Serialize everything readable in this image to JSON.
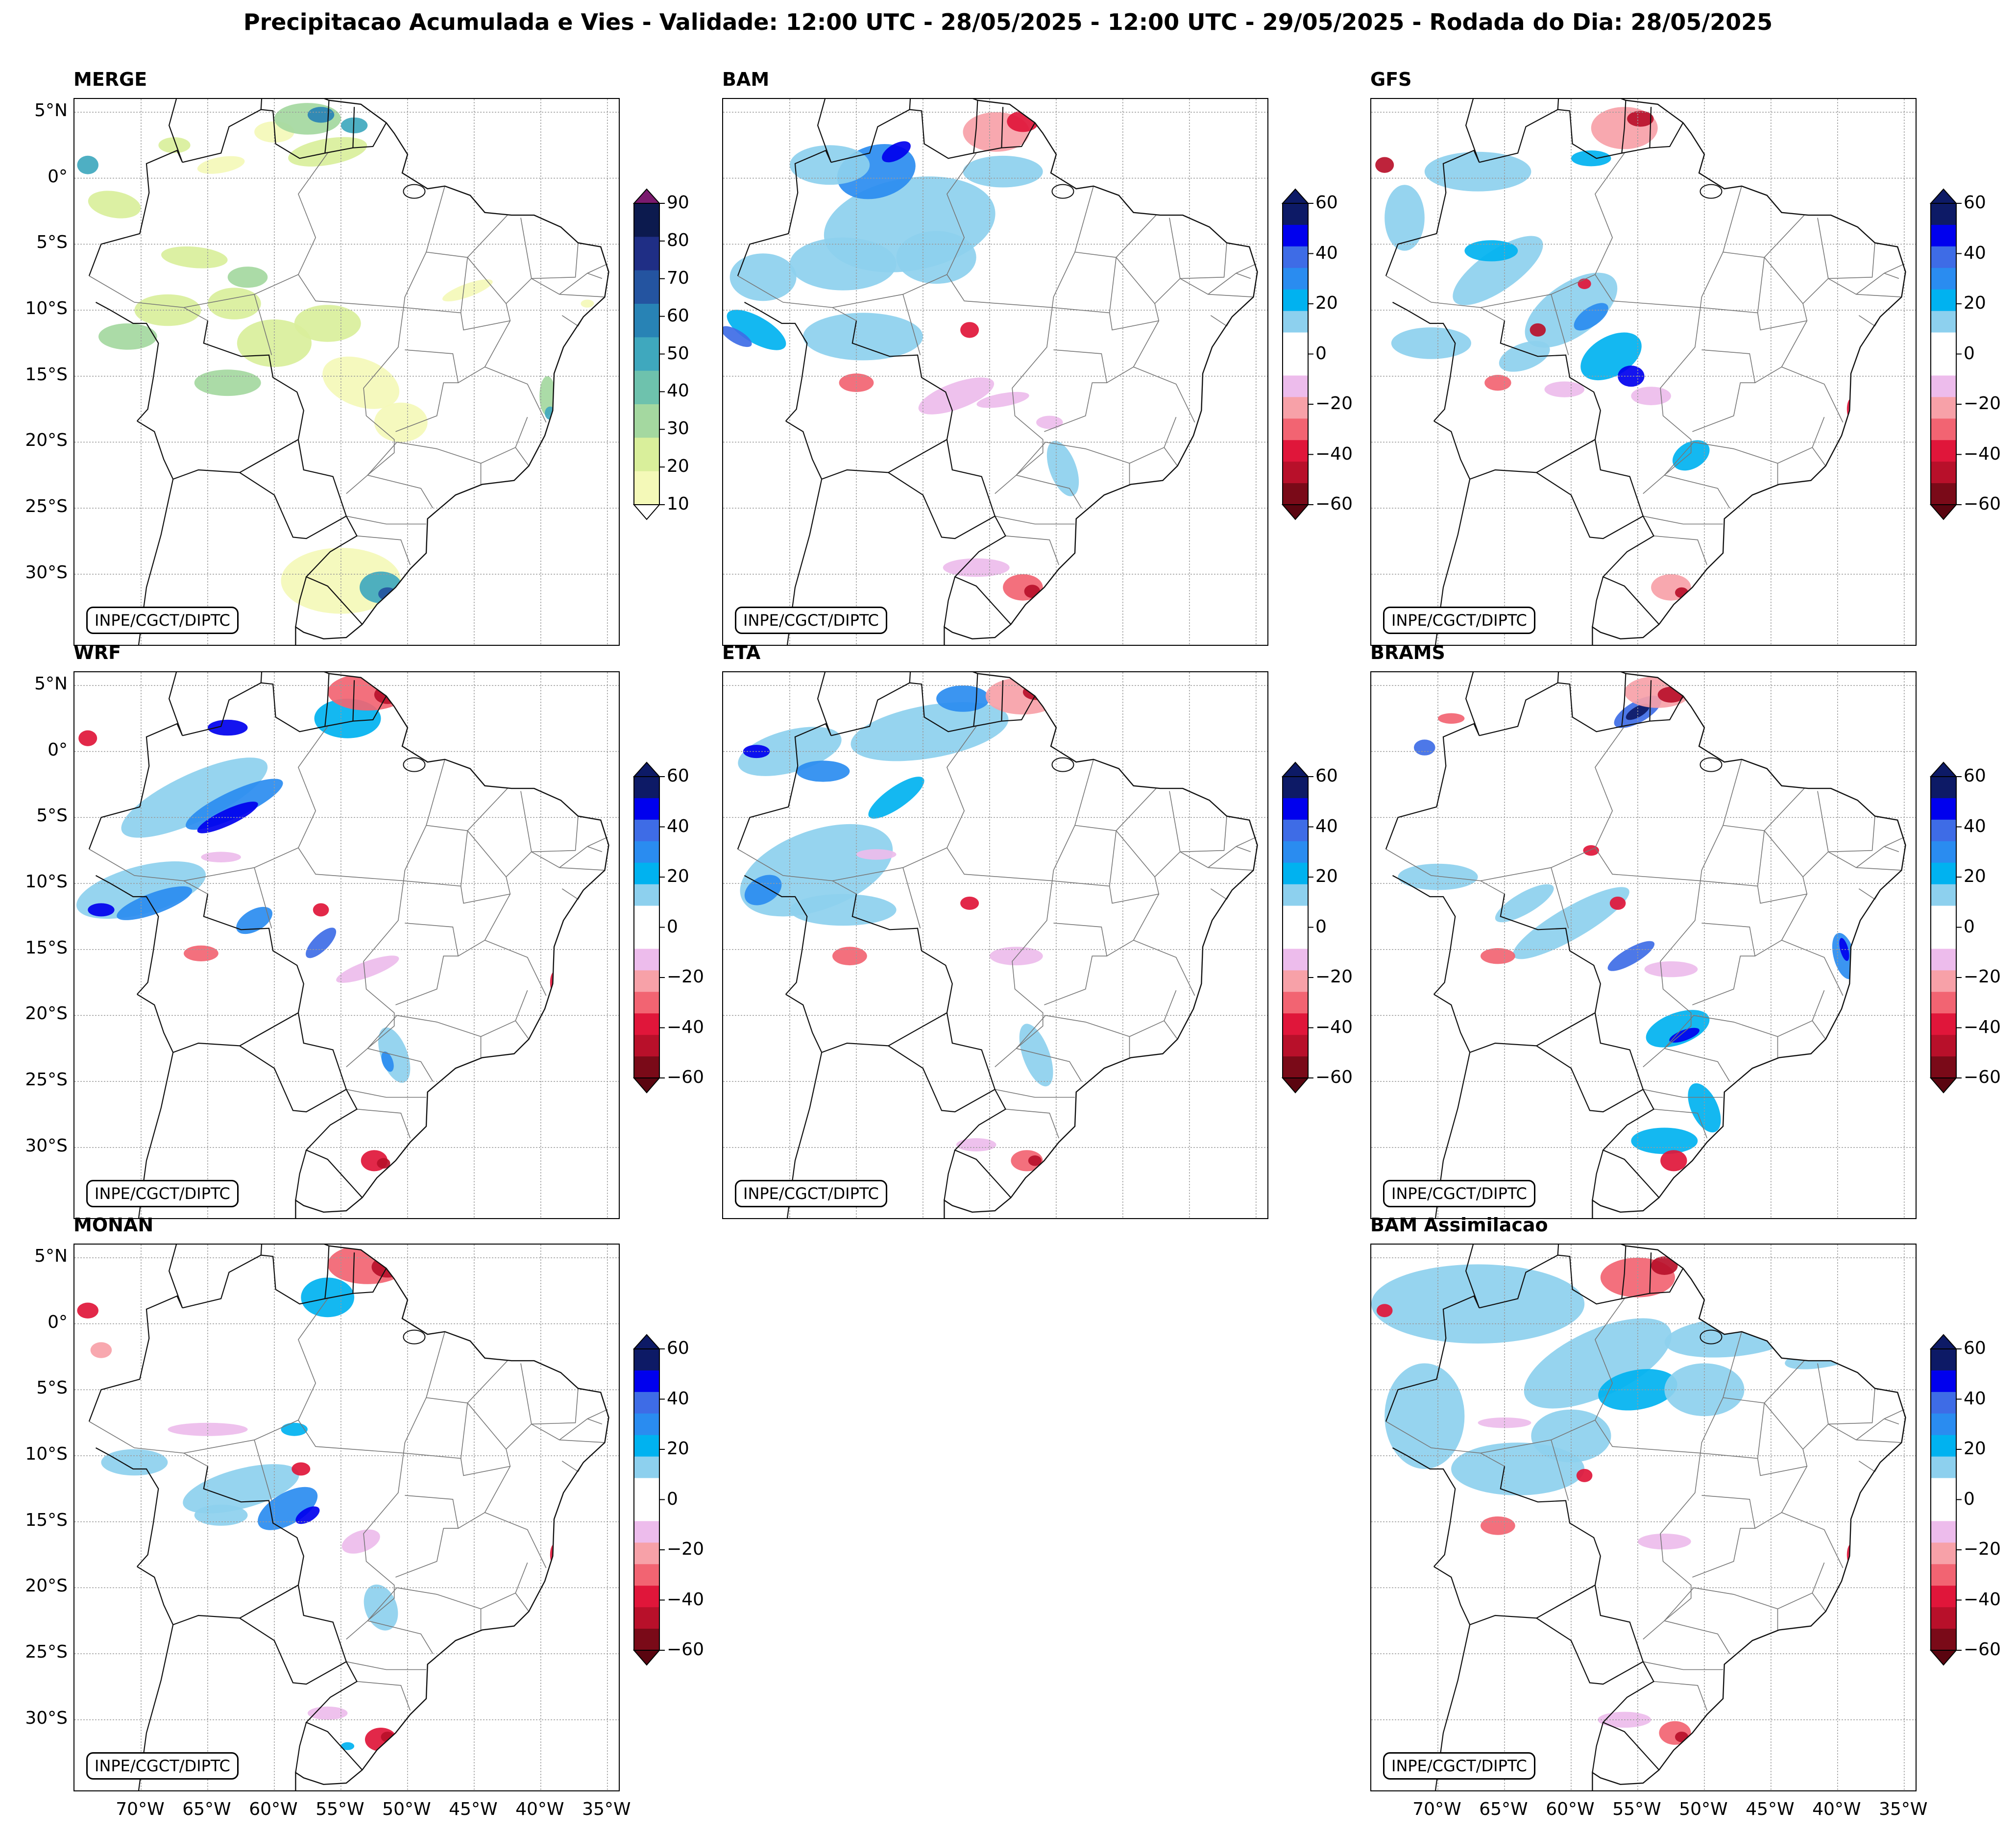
{
  "figure": {
    "title": "Precipitacao Acumulada e Vies - Validade: 12:00 UTC - 28/05/2025 - 12:00 UTC - 29/05/2025 - Rodada do Dia: 28/05/2025",
    "credit": "INPE/CGCT/DIPTC"
  },
  "axes": {
    "lat_labels": [
      "5°N",
      "0°",
      "5°S",
      "10°S",
      "15°S",
      "20°S",
      "25°S",
      "30°S"
    ],
    "lon_labels": [
      "70°W",
      "65°W",
      "60°W",
      "55°W",
      "50°W",
      "45°W",
      "40°W",
      "35°W"
    ]
  },
  "colorbars": {
    "merge": {
      "ticks": [
        "10",
        "20",
        "30",
        "40",
        "50",
        "60",
        "70",
        "80",
        "90"
      ],
      "colors": [
        "#f4f9b8",
        "#d9ef9b",
        "#a4d8a0",
        "#6ec2ad",
        "#3fa8be",
        "#2883b5",
        "#2454a0",
        "#1f2e85",
        "#0c1a4e"
      ],
      "under": "#ffffff",
      "over": "#7a1a6e"
    },
    "bias": {
      "ticks": [
        "60",
        "40",
        "20",
        "0",
        "−20",
        "−40",
        "−60"
      ],
      "colors": [
        "#0d1a66",
        "#0000ee",
        "#3e6ce6",
        "#2a8cf0",
        "#00b2f0",
        "#8dd0ee",
        "#ffffff",
        "#ffffff",
        "#edbcec",
        "#f7a1a8",
        "#f26472",
        "#e0163a",
        "#b8102a",
        "#7a0a18"
      ],
      "over": "#0d1a66",
      "under": "#5a0510"
    }
  },
  "panels": [
    {
      "id": "merge",
      "title": "MERGE",
      "kind": "merge",
      "show_y": true,
      "show_x": false
    },
    {
      "id": "bam",
      "title": "BAM",
      "kind": "bias",
      "show_y": false,
      "show_x": false
    },
    {
      "id": "gfs",
      "title": "GFS",
      "kind": "bias",
      "show_y": false,
      "show_x": false
    },
    {
      "id": "wrf",
      "title": "WRF",
      "kind": "bias",
      "show_y": true,
      "show_x": false
    },
    {
      "id": "eta",
      "title": "ETA",
      "kind": "bias",
      "show_y": false,
      "show_x": false
    },
    {
      "id": "brams",
      "title": "BRAMS",
      "kind": "bias",
      "show_y": false,
      "show_x": false
    },
    {
      "id": "monan",
      "title": "MONAN",
      "kind": "bias",
      "show_y": true,
      "show_x": true
    },
    {
      "id": "bamassim",
      "title": "BAM Assimilacao",
      "kind": "bias",
      "show_y": false,
      "show_x": true
    }
  ]
}
